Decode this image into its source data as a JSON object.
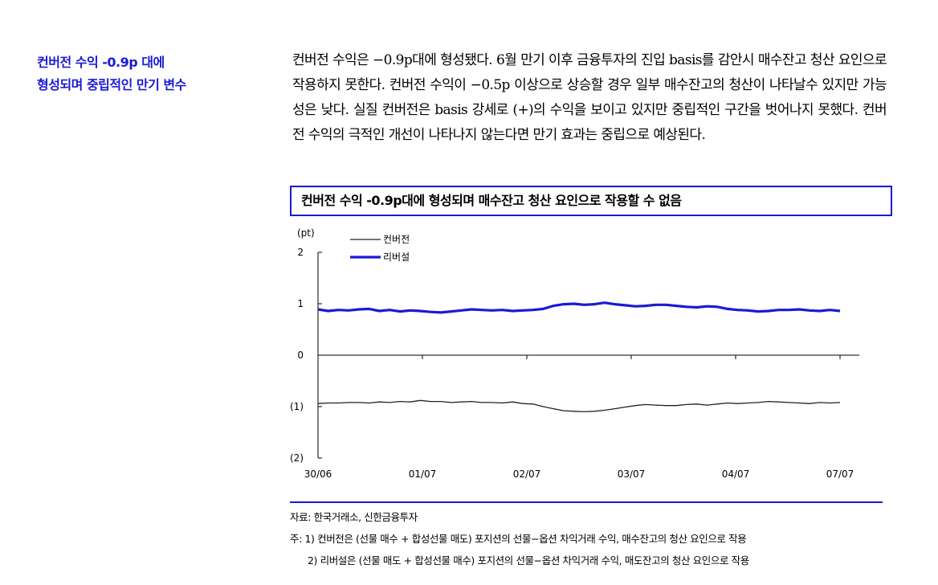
{
  "side_heading": {
    "line1": "컨버전 수익 -0.9p 대에",
    "line2": "형성되며 중립적인 만기 변수"
  },
  "body_text": "컨버전 수익은 −0.9p대에 형성됐다. 6월 만기 이후 금융투자의 진입 basis를 감안시 매수잔고 청산 요인으로 작용하지 못한다. 컨버전 수익이 −0.5p 이상으로 상승할 경우 일부 매수잔고의 청산이 나타날수 있지만 가능성은 낮다. 실질 컨버전은 basis 강세로 (+)의 수익을 보이고 있지만 중립적인 구간을 벗어나지 못했다. 컨버전 수익의 극적인 개선이 나타나지 않는다면 만기 효과는 중립으로 예상된다.",
  "chart_title": "컨버전 수익 -0.9p대에 형성되며 매수잔고 청산 요인으로 작용할 수 없음",
  "chart_data": {
    "type": "line",
    "unit_label": "(pt)",
    "ylim": [
      -2,
      2
    ],
    "y_ticks": [
      2,
      1,
      0,
      -1,
      -2
    ],
    "y_tick_labels": [
      "2",
      "1",
      "0",
      "(1)",
      "(2)"
    ],
    "x_tick_labels": [
      "30/06",
      "01/07",
      "02/07",
      "03/07",
      "04/07",
      "07/07"
    ],
    "legend_position": "top-left",
    "grid": false,
    "series": [
      {
        "name": "컨버전",
        "color": "#222222",
        "values": [
          -0.94,
          -0.93,
          -0.93,
          -0.92,
          -0.92,
          -0.93,
          -0.91,
          -0.92,
          -0.9,
          -0.91,
          -0.88,
          -0.9,
          -0.9,
          -0.92,
          -0.91,
          -0.9,
          -0.92,
          -0.92,
          -0.93,
          -0.91,
          -0.94,
          -0.95,
          -1.0,
          -1.04,
          -1.08,
          -1.09,
          -1.1,
          -1.09,
          -1.07,
          -1.04,
          -1.01,
          -0.98,
          -0.96,
          -0.97,
          -0.98,
          -0.98,
          -0.96,
          -0.95,
          -0.97,
          -0.95,
          -0.93,
          -0.94,
          -0.93,
          -0.92,
          -0.9,
          -0.91,
          -0.92,
          -0.93,
          -0.94,
          -0.92,
          -0.93,
          -0.92
        ]
      },
      {
        "name": "리버설",
        "color": "#1a1ad6",
        "values": [
          0.89,
          0.86,
          0.88,
          0.87,
          0.89,
          0.9,
          0.86,
          0.88,
          0.85,
          0.87,
          0.86,
          0.84,
          0.83,
          0.85,
          0.87,
          0.89,
          0.88,
          0.87,
          0.88,
          0.86,
          0.87,
          0.88,
          0.9,
          0.96,
          0.99,
          1.0,
          0.98,
          0.99,
          1.02,
          0.99,
          0.97,
          0.95,
          0.96,
          0.98,
          0.98,
          0.96,
          0.94,
          0.93,
          0.95,
          0.94,
          0.9,
          0.88,
          0.87,
          0.85,
          0.86,
          0.88,
          0.88,
          0.89,
          0.87,
          0.86,
          0.88,
          0.86
        ]
      }
    ]
  },
  "notes": {
    "source": "자료: 한국거래소, 신한금융투자",
    "note1": "주: 1) 컨버전은 (선물 매수 + 합성선물 매도) 포지션의 선물−옵션 차익거래 수익, 매수잔고의 청산 요인으로 작용",
    "note2": "2) 리버설은 (선물 매도 + 합성선물 매수) 포지션의 선물−옵션 차익거래 수익, 매도잔고의 청산 요인으로 작용"
  }
}
